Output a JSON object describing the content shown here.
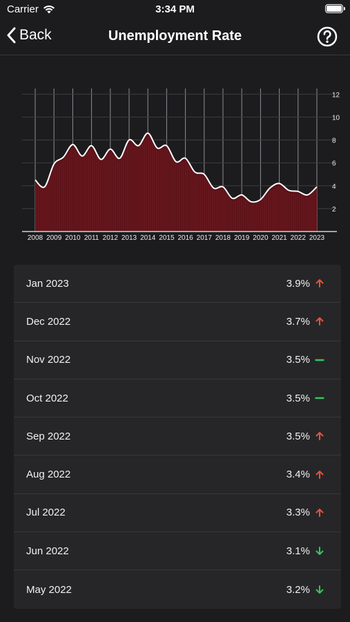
{
  "status_bar": {
    "carrier": "Carrier",
    "time": "3:34 PM",
    "battery_level": 1.0
  },
  "nav": {
    "back_label": "Back",
    "title": "Unemployment Rate",
    "help_icon": "question-circle-icon"
  },
  "colors": {
    "background": "#1c1c1e",
    "card": "#262629",
    "up": "#e5533d",
    "down": "#34c759",
    "flat": "#34c759",
    "area_fill": "#5a1218",
    "line": "#ffffff"
  },
  "chart_data": {
    "type": "area",
    "x": [
      2008,
      2008.5,
      2009,
      2009.5,
      2010,
      2010.5,
      2011,
      2011.5,
      2012,
      2012.5,
      2013,
      2013.5,
      2014,
      2014.5,
      2015,
      2015.5,
      2016,
      2016.5,
      2017,
      2017.5,
      2018,
      2018.5,
      2019,
      2019.5,
      2020,
      2020.5,
      2021,
      2021.5,
      2022,
      2022.5,
      2023
    ],
    "values": [
      4.5,
      3.9,
      5.9,
      6.5,
      7.6,
      6.6,
      7.5,
      6.3,
      7.2,
      6.4,
      8.0,
      7.5,
      8.6,
      7.3,
      7.5,
      6.1,
      6.4,
      5.2,
      5.0,
      3.8,
      3.9,
      2.9,
      3.2,
      2.6,
      2.8,
      3.8,
      4.2,
      3.6,
      3.5,
      3.2,
      3.9
    ],
    "xticks": [
      "2008",
      "2009",
      "2010",
      "2011",
      "2012",
      "2013",
      "2014",
      "2015",
      "2016",
      "2017",
      "2018",
      "2019",
      "2020",
      "2021",
      "2022",
      "2023"
    ],
    "yticks": [
      "2",
      "4",
      "6",
      "8",
      "10",
      "12"
    ],
    "ylim": [
      0,
      12.5
    ],
    "xlim": [
      2008,
      2023
    ],
    "grid": true,
    "yaxis_position": "right"
  },
  "list": [
    {
      "month": "Jan 2023",
      "value": "3.9%",
      "trend": "up"
    },
    {
      "month": "Dec 2022",
      "value": "3.7%",
      "trend": "up"
    },
    {
      "month": "Nov 2022",
      "value": "3.5%",
      "trend": "flat"
    },
    {
      "month": "Oct 2022",
      "value": "3.5%",
      "trend": "flat"
    },
    {
      "month": "Sep 2022",
      "value": "3.5%",
      "trend": "up"
    },
    {
      "month": "Aug 2022",
      "value": "3.4%",
      "trend": "up"
    },
    {
      "month": "Jul 2022",
      "value": "3.3%",
      "trend": "up"
    },
    {
      "month": "Jun 2022",
      "value": "3.1%",
      "trend": "down"
    },
    {
      "month": "May 2022",
      "value": "3.2%",
      "trend": "down"
    }
  ]
}
